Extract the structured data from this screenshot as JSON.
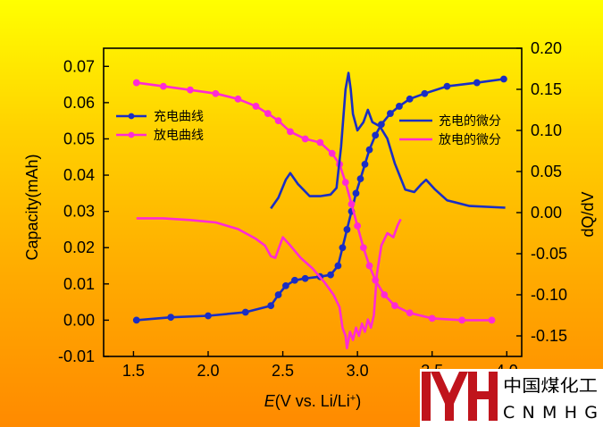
{
  "colors": {
    "charge": "#1a2ec4",
    "discharge": "#ff2ad4",
    "logo_red": "#c0141c"
  },
  "logo": {
    "name_cn": "中国煤化工",
    "name_en": "CNMHG"
  },
  "chart_data": {
    "type": "line",
    "xlabel_italic": "E",
    "xlabel_rest": "(V vs. Li/Li",
    "xlabel_sup": "+",
    "xlabel_end": ")",
    "ylabel_left": "Capacity(mAh)",
    "ylabel_right": "dQ/dV",
    "xlim": [
      1.3,
      4.1
    ],
    "ylim_left": [
      -0.01,
      0.075
    ],
    "ylim_right": [
      -0.175,
      0.2
    ],
    "x_ticks": [
      "1.5",
      "2.0",
      "2.5",
      "3.0",
      "3.5",
      "4.0"
    ],
    "y_ticks_left": [
      "-0.01",
      "0.00",
      "0.01",
      "0.02",
      "0.03",
      "0.04",
      "0.05",
      "0.06",
      "0.07"
    ],
    "y_ticks_right": [
      "-0.15",
      "-0.10",
      "-0.05",
      "0.00",
      "0.05",
      "0.10",
      "0.15",
      "0.20"
    ],
    "legend_left": [
      {
        "name": "充电曲线",
        "series": "charge_capacity"
      },
      {
        "name": "放电曲线",
        "series": "discharge_capacity"
      }
    ],
    "legend_right": [
      {
        "name": "充电的微分",
        "series": "charge_dqdv"
      },
      {
        "name": "放电的微分",
        "series": "discharge_dqdv"
      }
    ],
    "series": [
      {
        "name": "充电曲线",
        "axis": "left",
        "color": "#1a2ec4",
        "markers": true,
        "x": [
          1.52,
          1.75,
          2.0,
          2.25,
          2.42,
          2.47,
          2.52,
          2.58,
          2.65,
          2.75,
          2.82,
          2.87,
          2.9,
          2.93,
          2.96,
          2.99,
          3.02,
          3.05,
          3.08,
          3.12,
          3.16,
          3.22,
          3.28,
          3.35,
          3.45,
          3.6,
          3.8,
          3.98
        ],
        "y": [
          0.0,
          0.0008,
          0.0012,
          0.0022,
          0.004,
          0.007,
          0.0095,
          0.011,
          0.0115,
          0.012,
          0.0125,
          0.015,
          0.02,
          0.025,
          0.03,
          0.035,
          0.039,
          0.043,
          0.047,
          0.051,
          0.054,
          0.057,
          0.059,
          0.061,
          0.0625,
          0.0645,
          0.0655,
          0.0665
        ]
      },
      {
        "name": "放电曲线",
        "axis": "left",
        "color": "#ff2ad4",
        "markers": true,
        "x": [
          1.52,
          1.7,
          1.88,
          2.05,
          2.2,
          2.32,
          2.4,
          2.47,
          2.55,
          2.65,
          2.75,
          2.83,
          2.88,
          2.92,
          2.96,
          3.0,
          3.04,
          3.08,
          3.12,
          3.18,
          3.25,
          3.35,
          3.5,
          3.7,
          3.9
        ],
        "y": [
          0.0655,
          0.0645,
          0.0635,
          0.0625,
          0.061,
          0.059,
          0.057,
          0.055,
          0.052,
          0.05,
          0.049,
          0.046,
          0.043,
          0.038,
          0.032,
          0.026,
          0.02,
          0.015,
          0.011,
          0.007,
          0.004,
          0.002,
          0.0005,
          0.0,
          0.0
        ]
      },
      {
        "name": "充电的微分",
        "axis": "right",
        "color": "#1a2ec4",
        "markers": false,
        "x": [
          2.42,
          2.47,
          2.52,
          2.55,
          2.6,
          2.68,
          2.75,
          2.82,
          2.86,
          2.89,
          2.92,
          2.94,
          2.955,
          2.97,
          3.0,
          3.04,
          3.07,
          3.1,
          3.15,
          3.2,
          3.25,
          3.32,
          3.38,
          3.43,
          3.46,
          3.52,
          3.6,
          3.75,
          3.99
        ],
        "y": [
          0.005,
          0.018,
          0.04,
          0.048,
          0.035,
          0.02,
          0.02,
          0.022,
          0.03,
          0.08,
          0.15,
          0.17,
          0.15,
          0.12,
          0.1,
          0.11,
          0.125,
          0.11,
          0.105,
          0.09,
          0.06,
          0.028,
          0.025,
          0.035,
          0.04,
          0.028,
          0.015,
          0.008,
          0.006
        ]
      },
      {
        "name": "放电的微分",
        "axis": "right",
        "color": "#ff2ad4",
        "markers": false,
        "x": [
          1.52,
          1.7,
          1.88,
          2.05,
          2.2,
          2.32,
          2.38,
          2.42,
          2.45,
          2.5,
          2.55,
          2.62,
          2.7,
          2.78,
          2.84,
          2.88,
          2.9,
          2.92,
          2.93,
          2.95,
          2.97,
          2.99,
          3.01,
          3.03,
          3.05,
          3.07,
          3.09,
          3.11,
          3.13,
          3.16,
          3.2,
          3.24,
          3.27,
          3.29
        ],
        "y": [
          -0.007,
          -0.007,
          -0.009,
          -0.012,
          -0.02,
          -0.032,
          -0.04,
          -0.053,
          -0.055,
          -0.03,
          -0.04,
          -0.055,
          -0.068,
          -0.085,
          -0.1,
          -0.115,
          -0.14,
          -0.15,
          -0.165,
          -0.145,
          -0.155,
          -0.14,
          -0.15,
          -0.135,
          -0.145,
          -0.13,
          -0.14,
          -0.125,
          -0.075,
          -0.04,
          -0.025,
          -0.03,
          -0.015,
          -0.008
        ]
      }
    ]
  }
}
